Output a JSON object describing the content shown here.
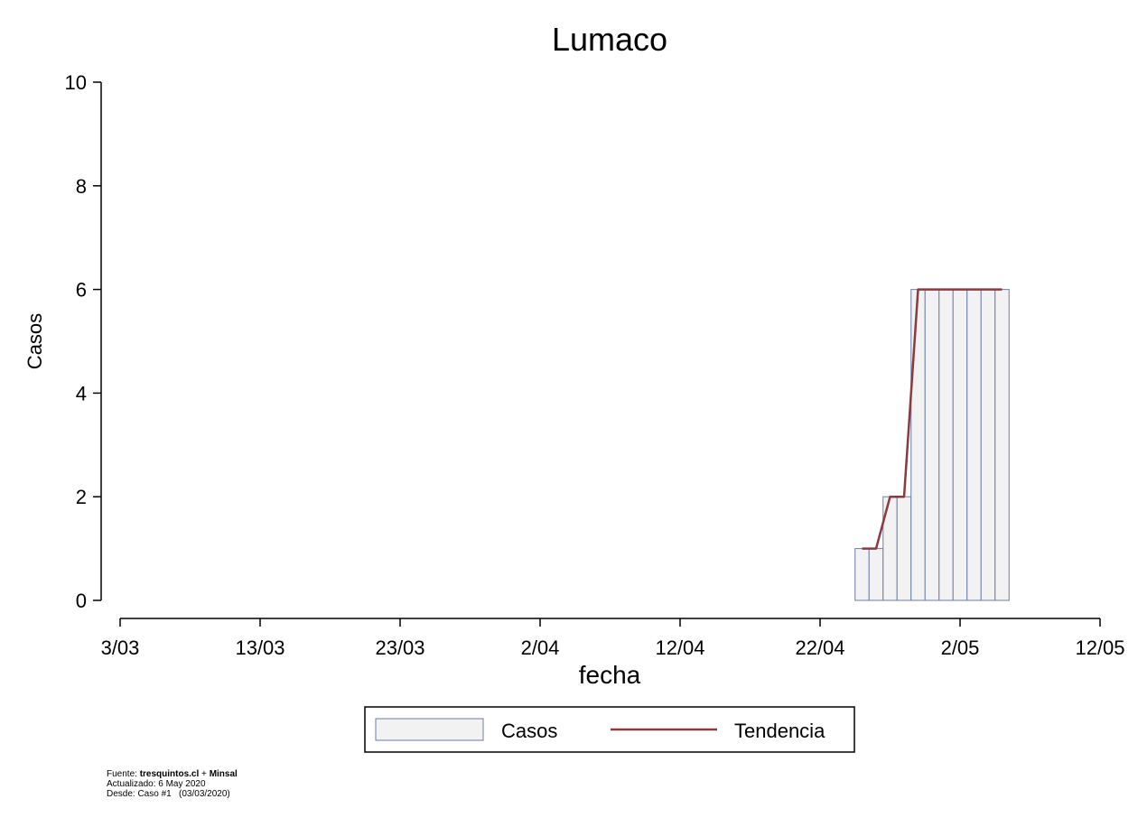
{
  "chart_data": {
    "type": "bar",
    "title": "Lumaco",
    "xlabel": "fecha",
    "ylabel": "Casos",
    "ylim": [
      0,
      10
    ],
    "yticks": [
      0,
      2,
      4,
      6,
      8,
      10
    ],
    "xlim": [
      "2020-03-03",
      "2020-05-12"
    ],
    "xticks": [
      {
        "date": "2020-03-03",
        "label": "3/03"
      },
      {
        "date": "2020-03-13",
        "label": "13/03"
      },
      {
        "date": "2020-03-23",
        "label": "23/03"
      },
      {
        "date": "2020-04-02",
        "label": "2/04"
      },
      {
        "date": "2020-04-12",
        "label": "12/04"
      },
      {
        "date": "2020-04-22",
        "label": "22/04"
      },
      {
        "date": "2020-05-02",
        "label": "2/05"
      },
      {
        "date": "2020-05-12",
        "label": "12/05"
      }
    ],
    "grid": false,
    "legend_position": "bottom",
    "series": [
      {
        "name": "Casos",
        "type": "bar",
        "color": "#f2f2f2",
        "edge_color": "#6a7fa8",
        "points": [
          {
            "date": "2020-04-25",
            "value": 1
          },
          {
            "date": "2020-04-26",
            "value": 1
          },
          {
            "date": "2020-04-27",
            "value": 2
          },
          {
            "date": "2020-04-28",
            "value": 2
          },
          {
            "date": "2020-04-29",
            "value": 6
          },
          {
            "date": "2020-04-30",
            "value": 6
          },
          {
            "date": "2020-05-01",
            "value": 6
          },
          {
            "date": "2020-05-02",
            "value": 6
          },
          {
            "date": "2020-05-03",
            "value": 6
          },
          {
            "date": "2020-05-04",
            "value": 6
          },
          {
            "date": "2020-05-05",
            "value": 6
          }
        ]
      },
      {
        "name": "Tendencia",
        "type": "line",
        "color": "#8b3a3f",
        "points": [
          {
            "date": "2020-04-25",
            "value": 1
          },
          {
            "date": "2020-04-26",
            "value": 1
          },
          {
            "date": "2020-04-27",
            "value": 2
          },
          {
            "date": "2020-04-28",
            "value": 2
          },
          {
            "date": "2020-04-29",
            "value": 6
          },
          {
            "date": "2020-04-30",
            "value": 6
          },
          {
            "date": "2020-05-01",
            "value": 6
          },
          {
            "date": "2020-05-02",
            "value": 6
          },
          {
            "date": "2020-05-03",
            "value": 6
          },
          {
            "date": "2020-05-04",
            "value": 6
          },
          {
            "date": "2020-05-05",
            "value": 6
          }
        ]
      }
    ]
  },
  "legend": {
    "casos_label": "Casos",
    "tendencia_label": "Tendencia"
  },
  "footer": {
    "source_prefix": "Fuente: ",
    "source_site": "tresquintos.cl",
    "source_plus": " + ",
    "source_org": "Minsal",
    "updated": "Actualizado: 6 May 2020",
    "since": "Desde: Caso #1   (03/03/2020)"
  }
}
